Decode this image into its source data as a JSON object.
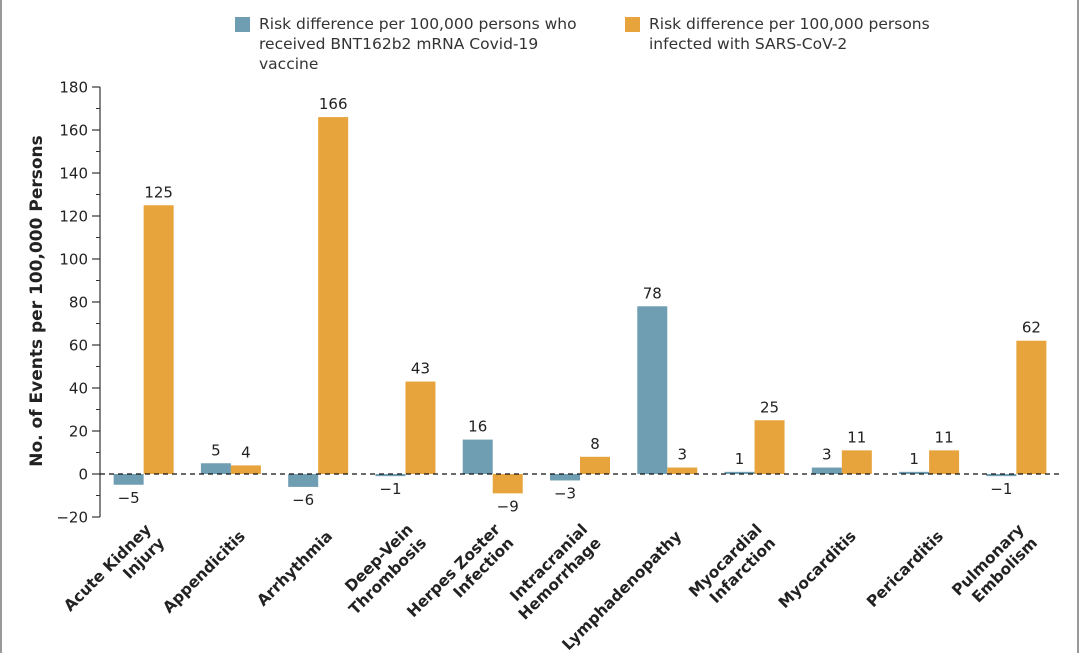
{
  "colors": {
    "vaccine": "#6f9db2",
    "infection": "#e8a43c",
    "axis": "#333333",
    "frame": "#999999"
  },
  "chart_data": {
    "type": "bar",
    "ylabel": "No. of Events per 100,000 Persons",
    "ylim": [
      -20,
      180
    ],
    "yticks": [
      "−20",
      "0",
      "20",
      "40",
      "60",
      "80",
      "100",
      "120",
      "140",
      "160",
      "180"
    ],
    "ytick_values": [
      -20,
      0,
      20,
      40,
      60,
      80,
      100,
      120,
      140,
      160,
      180
    ],
    "legend_position": "top",
    "categories": [
      [
        "Acute Kidney",
        "Injury"
      ],
      [
        "Appendicitis"
      ],
      [
        "Arrhythmia"
      ],
      [
        "Deep-Vein",
        "Thrombosis"
      ],
      [
        "Herpes Zoster",
        "Infection"
      ],
      [
        "Intracranial",
        "Hemorrhage"
      ],
      [
        "Lymphadenopathy"
      ],
      [
        "Myocardial",
        "Infarction"
      ],
      [
        "Myocarditis"
      ],
      [
        "Pericarditis"
      ],
      [
        "Pulmonary",
        "Embolism"
      ]
    ],
    "series": [
      {
        "name": "Risk difference per 100,000 persons who received BNT162b2 mRNA Covid-19 vaccine",
        "name_lines": [
          "Risk difference per 100,000 persons who",
          "received BNT162b2 mRNA Covid-19 vaccine"
        ],
        "values": [
          -5,
          5,
          -6,
          -1,
          16,
          -3,
          78,
          1,
          3,
          1,
          -1
        ],
        "labels": [
          "−5",
          "5",
          "−6",
          "−1",
          "16",
          "−3",
          "78",
          "1",
          "3",
          "1",
          "−1"
        ]
      },
      {
        "name": "Risk difference per 100,000 persons infected with SARS-CoV-2",
        "name_lines": [
          "Risk difference per 100,000 persons",
          "infected with SARS-CoV-2"
        ],
        "values": [
          125,
          4,
          166,
          43,
          -9,
          8,
          3,
          25,
          11,
          11,
          62
        ],
        "labels": [
          "125",
          "4",
          "166",
          "43",
          "−9",
          "8",
          "3",
          "25",
          "11",
          "11",
          "62"
        ]
      }
    ]
  }
}
